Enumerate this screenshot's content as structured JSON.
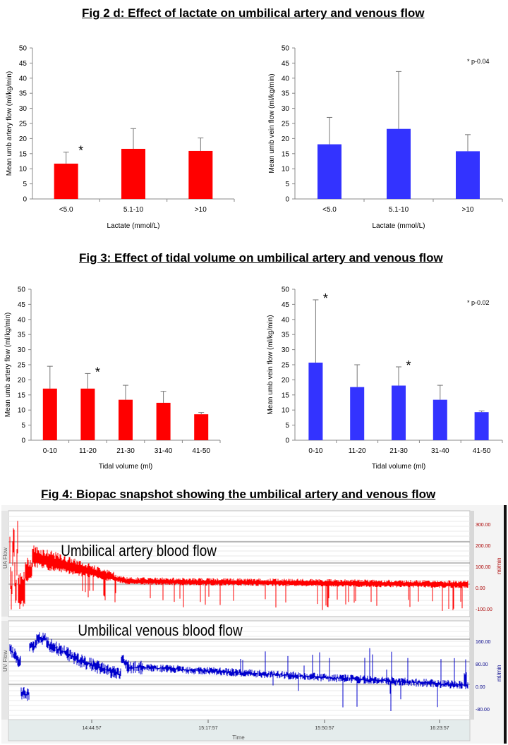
{
  "titles": {
    "fig2": "Fig 2 d: Effect of lactate on umbilical artery and venous flow",
    "fig3": "Fig 3: Effect of tidal volume on umbilical artery and venous flow",
    "fig4": "Fig 4: Biopac snapshot showing the umbilical artery and venous flow"
  },
  "colors": {
    "artery": "#ff0000",
    "vein": "#3333ff"
  },
  "chart_data": [
    {
      "type": "bar",
      "xlabel": "Lactate (mmol/L)",
      "ylabel": "Mean umb artery flow (ml/kg/min)",
      "ylim": [
        0,
        50
      ],
      "yticks": [
        0,
        5,
        10,
        15,
        20,
        25,
        30,
        35,
        40,
        45,
        50
      ],
      "categories": [
        "<5.0",
        "5.1-10",
        ">10"
      ],
      "values": [
        11.7,
        16.6,
        15.9
      ],
      "errors": [
        3.8,
        6.7,
        4.3
      ],
      "significance": [
        "*",
        "",
        ""
      ],
      "annotation": "",
      "color": "#ff0000"
    },
    {
      "type": "bar",
      "xlabel": "Lactate (mmol/L)",
      "ylabel": "Mean umb vein flow (ml/kg/min)",
      "ylim": [
        0,
        50
      ],
      "yticks": [
        0,
        5,
        10,
        15,
        20,
        25,
        30,
        35,
        40,
        45,
        50
      ],
      "categories": [
        "<5.0",
        "5.1-10",
        ">10"
      ],
      "values": [
        18.1,
        23.2,
        15.8
      ],
      "errors": [
        8.9,
        19.0,
        5.5
      ],
      "significance": [
        "",
        "",
        ""
      ],
      "annotation": "* p-0.04",
      "color": "#3333ff"
    },
    {
      "type": "bar",
      "xlabel": "Tidal volume (ml)",
      "ylabel": "Mean umb artery flow (ml/kg/min)",
      "ylim": [
        0,
        50
      ],
      "yticks": [
        0,
        5,
        10,
        15,
        20,
        25,
        30,
        35,
        40,
        45,
        50
      ],
      "categories": [
        "0-10",
        "11-20",
        "21-30",
        "31-40",
        "41-50"
      ],
      "values": [
        17.1,
        17.1,
        13.4,
        12.4,
        8.6
      ],
      "errors": [
        7.4,
        5.0,
        4.8,
        3.8,
        0.6
      ],
      "significance": [
        "",
        "*",
        "",
        "",
        ""
      ],
      "annotation": "",
      "color": "#ff0000"
    },
    {
      "type": "bar",
      "xlabel": "Tidal volume (ml)",
      "ylabel": "Mean umb vein flow (ml/kg/min)",
      "ylim": [
        0,
        50
      ],
      "yticks": [
        0,
        5,
        10,
        15,
        20,
        25,
        30,
        35,
        40,
        45,
        50
      ],
      "categories": [
        "0-10",
        "11-20",
        "21-30",
        "31-40",
        "41-50"
      ],
      "values": [
        25.7,
        17.6,
        18.1,
        13.4,
        9.3
      ],
      "errors": [
        20.8,
        7.4,
        6.2,
        4.8,
        0.4
      ],
      "significance": [
        "*",
        "",
        "*",
        "",
        ""
      ],
      "annotation": "* p-0.02",
      "color": "#3333ff"
    }
  ],
  "snapshot": {
    "artery_label": "Umbilical artery blood flow",
    "vein_label": "Umbilical venous blood flow",
    "artery_channel": "UA Flow",
    "vein_channel": "UV Flow",
    "artery_scale": [
      "300.00",
      "200.00",
      "100.00",
      "0.00",
      "-100.00"
    ],
    "vein_scale": [
      "160.00",
      "80.00",
      "0.00",
      "-80.00"
    ],
    "unit": "ml/min",
    "time_ticks": [
      "14:44:57",
      "15:17:57",
      "15:50:57",
      "16:23:57"
    ],
    "time_label": "Time"
  }
}
